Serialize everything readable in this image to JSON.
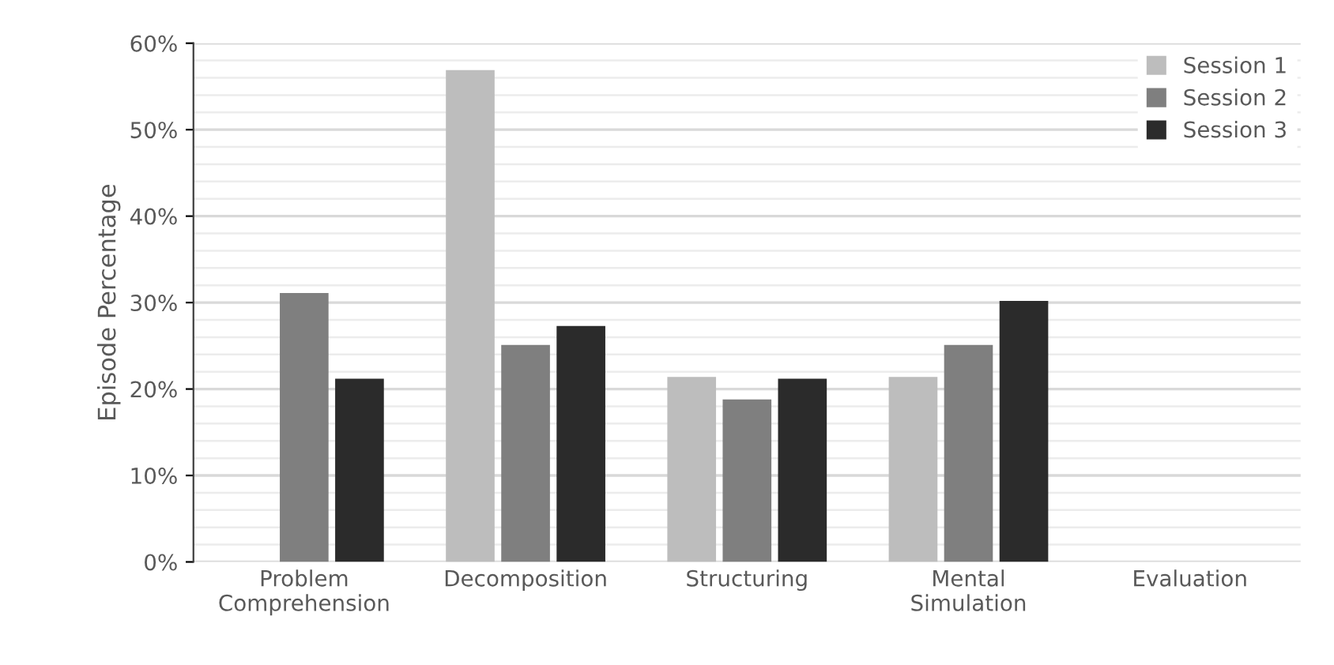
{
  "chart_data": {
    "type": "bar",
    "ylabel": "Episode Percentage",
    "categories": [
      "Problem\nComprehension",
      "Decomposition",
      "Structuring",
      "Mental\nSimulation",
      "Evaluation"
    ],
    "series": [
      {
        "name": "Session 1",
        "color": "#bdbdbd",
        "values": [
          0,
          56.9,
          21.4,
          21.4,
          0
        ]
      },
      {
        "name": "Session 2",
        "color": "#7f7f7f",
        "values": [
          31.1,
          25.1,
          18.8,
          25.1,
          0
        ]
      },
      {
        "name": "Session 3",
        "color": "#2b2b2b",
        "values": [
          21.2,
          27.3,
          21.2,
          30.2,
          0
        ]
      }
    ],
    "ylim": [
      0,
      60
    ],
    "yticks": [
      {
        "value": 0,
        "label": "0%"
      },
      {
        "value": 2,
        "label": null
      },
      {
        "value": 4,
        "label": null
      },
      {
        "value": 6,
        "label": null
      },
      {
        "value": 8,
        "label": null
      },
      {
        "value": 10,
        "label": "10%"
      },
      {
        "value": 12,
        "label": null
      },
      {
        "value": 14,
        "label": null
      },
      {
        "value": 16,
        "label": null
      },
      {
        "value": 18,
        "label": null
      },
      {
        "value": 20,
        "label": "20%"
      },
      {
        "value": 22,
        "label": null
      },
      {
        "value": 24,
        "label": null
      },
      {
        "value": 26,
        "label": null
      },
      {
        "value": 28,
        "label": null
      },
      {
        "value": 30,
        "label": "30%"
      },
      {
        "value": 32,
        "label": null
      },
      {
        "value": 34,
        "label": null
      },
      {
        "value": 36,
        "label": null
      },
      {
        "value": 38,
        "label": null
      },
      {
        "value": 40,
        "label": "40%"
      },
      {
        "value": 42,
        "label": null
      },
      {
        "value": 44,
        "label": null
      },
      {
        "value": 46,
        "label": null
      },
      {
        "value": 48,
        "label": null
      },
      {
        "value": 50,
        "label": "50%"
      },
      {
        "value": 52,
        "label": null
      },
      {
        "value": 54,
        "label": null
      },
      {
        "value": 56,
        "label": null
      },
      {
        "value": 58,
        "label": null
      },
      {
        "value": 60,
        "label": "60%"
      }
    ],
    "grid": "y",
    "legend": "top right"
  }
}
